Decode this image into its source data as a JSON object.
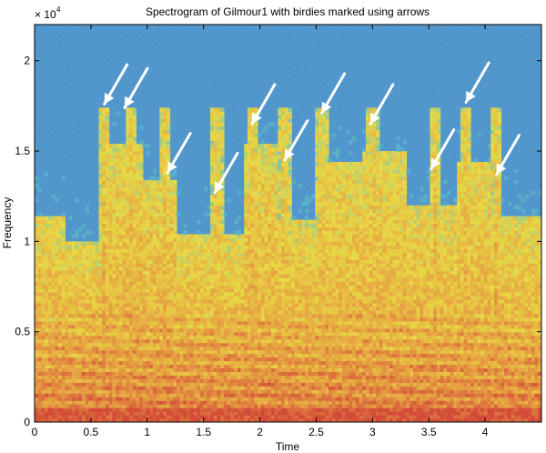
{
  "chart_data": {
    "type": "heatmap",
    "title": "Spectrogram of Gilmour1 with birdies marked using arrows",
    "xlabel": "Time",
    "ylabel": "Frequency",
    "y_exponent_base": "× 10",
    "y_exponent_power": "4",
    "xlim": [
      0,
      4.5
    ],
    "ylim": [
      0,
      2.2
    ],
    "x_ticks": [
      {
        "value": 0,
        "label": "0"
      },
      {
        "value": 0.5,
        "label": "0.5"
      },
      {
        "value": 1,
        "label": "1"
      },
      {
        "value": 1.5,
        "label": "1.5"
      },
      {
        "value": 2,
        "label": "2"
      },
      {
        "value": 2.5,
        "label": "2.5"
      },
      {
        "value": 3,
        "label": "3"
      },
      {
        "value": 3.5,
        "label": "3.5"
      },
      {
        "value": 4,
        "label": "4"
      }
    ],
    "y_ticks": [
      {
        "value": 0,
        "label": "0"
      },
      {
        "value": 0.5,
        "label": "0.5"
      },
      {
        "value": 1,
        "label": "1"
      },
      {
        "value": 1.5,
        "label": "1.5"
      },
      {
        "value": 2,
        "label": "2"
      }
    ],
    "colormap": {
      "low": "#3b8fd0",
      "mid": "#f2e12c",
      "high": "#d8321e"
    },
    "birdie_arrows": [
      {
        "t": 0.62,
        "f": 1.76
      },
      {
        "t": 0.8,
        "f": 1.74
      },
      {
        "t": 1.18,
        "f": 1.38
      },
      {
        "t": 1.6,
        "f": 1.27
      },
      {
        "t": 1.93,
        "f": 1.65
      },
      {
        "t": 2.22,
        "f": 1.45
      },
      {
        "t": 2.55,
        "f": 1.71
      },
      {
        "t": 2.98,
        "f": 1.65
      },
      {
        "t": 3.52,
        "f": 1.4
      },
      {
        "t": 3.83,
        "f": 1.77
      },
      {
        "t": 4.1,
        "f": 1.37
      }
    ],
    "birdie_streaks": [
      0.62,
      0.85,
      1.15,
      1.62,
      1.93,
      2.22,
      2.55,
      3.0,
      3.55,
      3.83,
      4.1
    ],
    "sections": [
      {
        "t0": 0.0,
        "t1": 0.28,
        "top": 1.15
      },
      {
        "t0": 0.28,
        "t1": 0.62,
        "top": 1.0
      },
      {
        "t0": 0.62,
        "t1": 0.95,
        "top": 1.55
      },
      {
        "t0": 0.95,
        "t1": 1.25,
        "top": 1.35
      },
      {
        "t0": 1.25,
        "t1": 1.85,
        "top": 1.05
      },
      {
        "t0": 1.85,
        "t1": 2.15,
        "top": 1.55
      },
      {
        "t0": 2.15,
        "t1": 2.55,
        "top": 1.12
      },
      {
        "t0": 2.55,
        "t1": 2.9,
        "top": 1.45
      },
      {
        "t0": 2.9,
        "t1": 3.3,
        "top": 1.5
      },
      {
        "t0": 3.3,
        "t1": 3.75,
        "top": 1.2
      },
      {
        "t0": 3.75,
        "t1": 4.05,
        "top": 1.45
      },
      {
        "t0": 4.05,
        "t1": 4.5,
        "top": 1.15
      }
    ]
  }
}
